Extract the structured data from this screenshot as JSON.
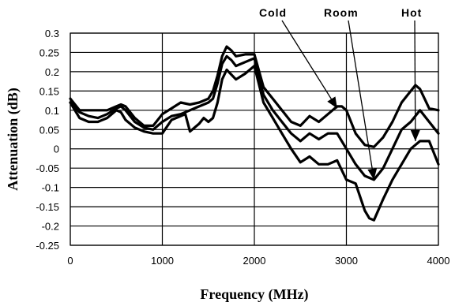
{
  "chart_data": {
    "type": "line",
    "title": "",
    "xlabel": "Frequency (MHz)",
    "ylabel": "Attenuation (dB)",
    "xlim": [
      0,
      4000
    ],
    "ylim": [
      -0.25,
      0.3
    ],
    "xticks": [
      0,
      1000,
      2000,
      3000,
      4000
    ],
    "yticks": [
      0.3,
      0.25,
      0.2,
      0.15,
      0.1,
      0.05,
      0,
      -0.05,
      -0.1,
      -0.15,
      -0.2,
      -0.25
    ],
    "ytick_labels": [
      "0.3",
      "0.25",
      "0.2",
      "0.15",
      "0.1",
      "0.05",
      "0",
      "-0.05",
      "-0.1",
      "-0.15",
      "-0.2",
      "-0.25"
    ],
    "grid": "horizontal and vertical",
    "line_color": "#000000",
    "annotations": [
      {
        "text": "Cold",
        "target": [
          2900,
          0.105
        ]
      },
      {
        "text": "Room",
        "target": [
          3300,
          -0.08
        ]
      },
      {
        "text": "Hot",
        "target": [
          3750,
          0.02
        ]
      }
    ],
    "series": [
      {
        "x": [
          0,
          100,
          200,
          300,
          400,
          500,
          550,
          600,
          700,
          800,
          900,
          1000,
          1100,
          1200,
          1300,
          1400,
          1500,
          1550,
          1600,
          1650,
          1700,
          1750,
          1800,
          1900,
          2000,
          2100,
          2200,
          2300,
          2400,
          2500,
          2600,
          2700,
          2800,
          2900,
          2950,
          3000,
          3100,
          3200,
          3300,
          3400,
          3500,
          3600,
          3700,
          3750,
          3800,
          3900,
          4000
        ],
        "values": [
          0.13,
          0.1,
          0.1,
          0.1,
          0.1,
          0.11,
          0.115,
          0.11,
          0.08,
          0.06,
          0.06,
          0.09,
          0.105,
          0.12,
          0.115,
          0.12,
          0.13,
          0.15,
          0.19,
          0.24,
          0.265,
          0.255,
          0.24,
          0.245,
          0.245,
          0.16,
          0.13,
          0.1,
          0.07,
          0.06,
          0.085,
          0.07,
          0.09,
          0.11,
          0.11,
          0.1,
          0.04,
          0.01,
          0.005,
          0.03,
          0.07,
          0.12,
          0.15,
          0.165,
          0.155,
          0.105,
          0.1
        ]
      },
      {
        "x": [
          0,
          100,
          200,
          300,
          400,
          500,
          550,
          600,
          700,
          800,
          900,
          1000,
          1100,
          1200,
          1300,
          1400,
          1500,
          1550,
          1600,
          1650,
          1700,
          1750,
          1800,
          1900,
          2000,
          2100,
          2200,
          2300,
          2400,
          2500,
          2600,
          2700,
          2800,
          2900,
          3000,
          3100,
          3200,
          3300,
          3400,
          3500,
          3600,
          3700,
          3800,
          3900,
          4000
        ],
        "values": [
          0.12,
          0.095,
          0.085,
          0.08,
          0.09,
          0.105,
          0.11,
          0.1,
          0.07,
          0.055,
          0.05,
          0.07,
          0.085,
          0.09,
          0.1,
          0.11,
          0.12,
          0.13,
          0.17,
          0.22,
          0.24,
          0.23,
          0.215,
          0.225,
          0.235,
          0.14,
          0.1,
          0.07,
          0.04,
          0.02,
          0.04,
          0.025,
          0.04,
          0.04,
          0.0,
          -0.04,
          -0.07,
          -0.08,
          -0.05,
          0.0,
          0.05,
          0.07,
          0.1,
          0.07,
          0.04
        ]
      },
      {
        "x": [
          0,
          100,
          200,
          300,
          400,
          500,
          550,
          600,
          700,
          800,
          900,
          1000,
          1100,
          1200,
          1250,
          1300,
          1400,
          1450,
          1500,
          1550,
          1600,
          1650,
          1700,
          1800,
          1900,
          2000,
          2100,
          2200,
          2300,
          2400,
          2500,
          2600,
          2700,
          2800,
          2900,
          3000,
          3100,
          3200,
          3250,
          3300,
          3400,
          3500,
          3600,
          3700,
          3800,
          3900,
          4000
        ],
        "values": [
          0.12,
          0.08,
          0.07,
          0.07,
          0.08,
          0.1,
          0.095,
          0.075,
          0.055,
          0.045,
          0.04,
          0.04,
          0.075,
          0.085,
          0.09,
          0.045,
          0.065,
          0.08,
          0.07,
          0.08,
          0.12,
          0.18,
          0.205,
          0.18,
          0.195,
          0.215,
          0.12,
          0.08,
          0.04,
          0.0,
          -0.035,
          -0.02,
          -0.04,
          -0.04,
          -0.03,
          -0.08,
          -0.09,
          -0.16,
          -0.18,
          -0.185,
          -0.13,
          -0.08,
          -0.04,
          0.0,
          0.02,
          0.02,
          -0.04
        ]
      }
    ]
  }
}
